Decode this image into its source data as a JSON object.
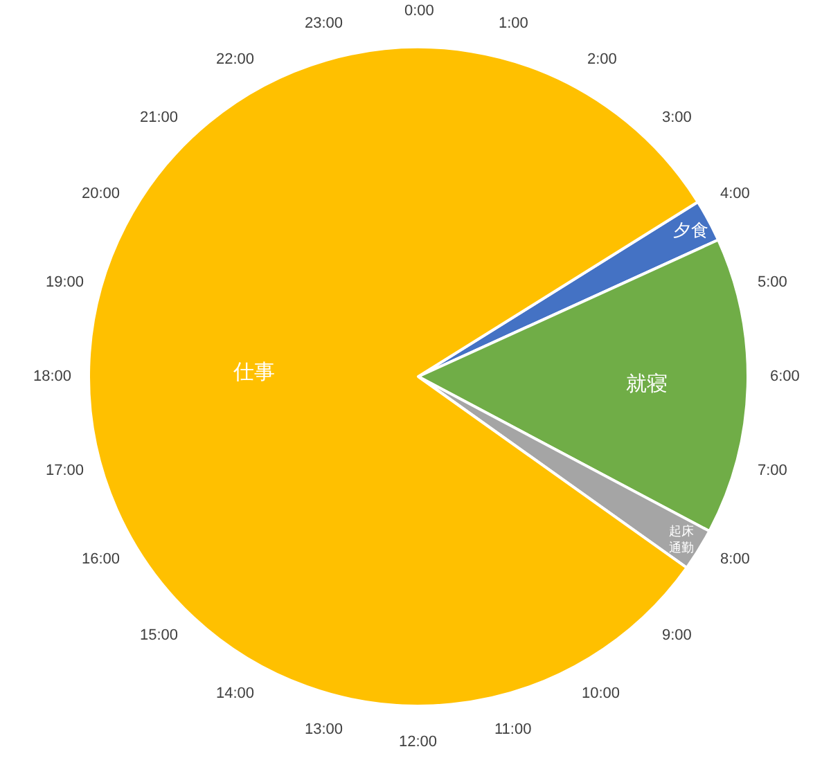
{
  "chart_data": {
    "type": "pie",
    "categories": [
      "夕食",
      "就寝",
      "起床通勤",
      "仕事"
    ],
    "values": [
      2.08,
      14.58,
      2.08,
      81.26
    ],
    "colors": [
      "#4472c4",
      "#70ad47",
      "#a5a5a5",
      "#ffc000"
    ],
    "annotations": [
      "0:00",
      "1:00",
      "2:00",
      "3:00",
      "4:00",
      "5:00",
      "6:00",
      "7:00",
      "8:00",
      "9:00",
      "10:00",
      "11:00",
      "12:00",
      "13:00",
      "14:00",
      "15:00",
      "16:00",
      "17:00",
      "18:00",
      "19:00",
      "20:00",
      "21:00",
      "22:00",
      "23:00"
    ],
    "legend": false
  }
}
